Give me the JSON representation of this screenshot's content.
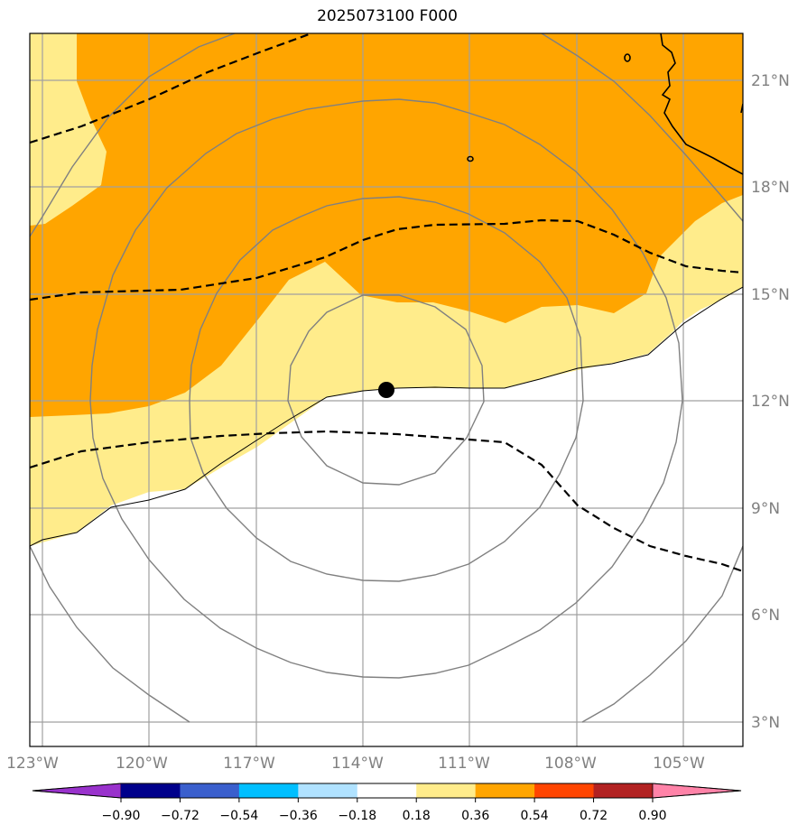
{
  "title": "2025073100 F000",
  "lon_ticks": [
    "123°W",
    "120°W",
    "117°W",
    "114°W",
    "111°W",
    "108°W",
    "105°W"
  ],
  "lat_ticks": [
    "21°N",
    "18°N",
    "15°N",
    "12°N",
    "9°N",
    "6°N",
    "3°N"
  ],
  "colorbar": {
    "ticks": [
      "−0.90",
      "−0.72",
      "−0.54",
      "−0.36",
      "−0.18",
      "0.18",
      "0.36",
      "0.54",
      "0.72",
      "0.90"
    ],
    "colors": [
      "#9932cc",
      "#00008b",
      "#3a5fcd",
      "#00bfff",
      "#b0e2ff",
      "#ffffff",
      "#ffec8b",
      "#ffa500",
      "#ff4500",
      "#b22222",
      "#ff83a8"
    ]
  },
  "storm_center": {
    "lon": -113.3,
    "lat": 12.3
  },
  "fill_colors": {
    "orange": "#ffa500",
    "yellow": "#ffec8b"
  }
}
